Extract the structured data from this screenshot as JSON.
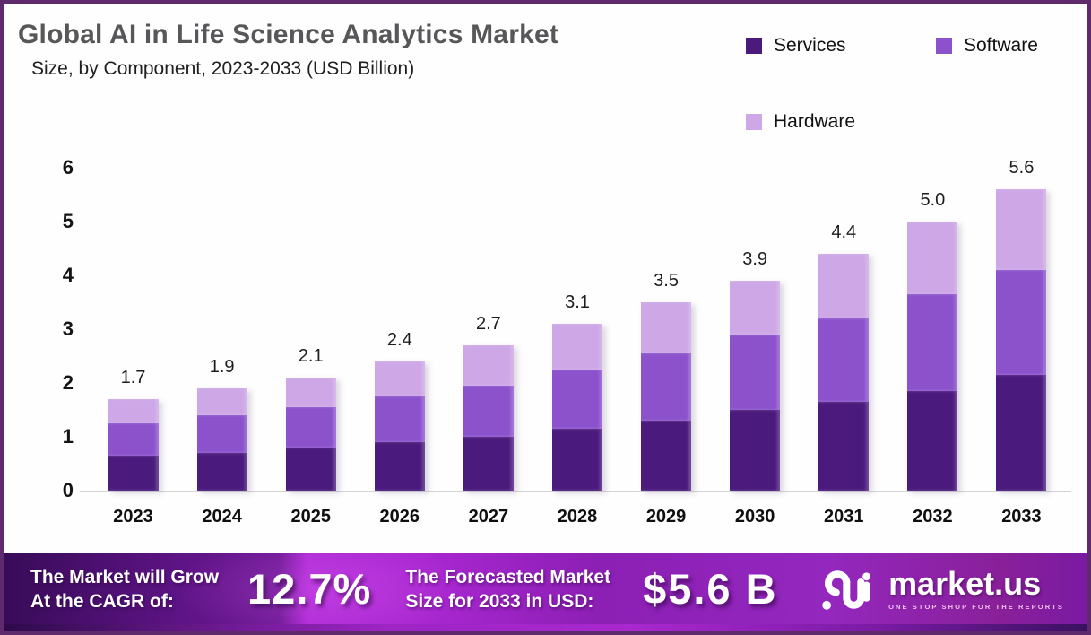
{
  "header": {
    "title": "Global AI in Life Science Analytics Market",
    "subtitle": "Size, by Component, 2023-2033 (USD Billion)"
  },
  "legend": {
    "items": [
      {
        "label": "Services",
        "color": "#4a1a7d"
      },
      {
        "label": "Software",
        "color": "#8c52cc"
      },
      {
        "label": "Hardware",
        "color": "#cda7e6"
      }
    ],
    "position": "top-right"
  },
  "chart_data": {
    "type": "bar",
    "stacked": true,
    "title": "Global AI in Life Science Analytics Market Size, by Component, 2023-2033 (USD Billion)",
    "xlabel": "",
    "ylabel": "",
    "ylim": [
      0,
      6
    ],
    "yticks": [
      0,
      1,
      2,
      3,
      4,
      5,
      6
    ],
    "grid": false,
    "legend_position": "top-right",
    "categories": [
      "2023",
      "2024",
      "2025",
      "2026",
      "2027",
      "2028",
      "2029",
      "2030",
      "2031",
      "2032",
      "2033"
    ],
    "series": [
      {
        "name": "Services",
        "color": "#4a1a7d",
        "values": [
          0.65,
          0.7,
          0.8,
          0.9,
          1.0,
          1.15,
          1.3,
          1.5,
          1.65,
          1.85,
          2.15
        ]
      },
      {
        "name": "Software",
        "color": "#8c52cc",
        "values": [
          0.6,
          0.7,
          0.75,
          0.85,
          0.95,
          1.1,
          1.25,
          1.4,
          1.55,
          1.8,
          1.95
        ]
      },
      {
        "name": "Hardware",
        "color": "#cda7e6",
        "values": [
          0.45,
          0.5,
          0.55,
          0.65,
          0.75,
          0.85,
          0.95,
          1.0,
          1.2,
          1.35,
          1.5
        ]
      }
    ],
    "totals": [
      "1.7",
      "1.9",
      "2.1",
      "2.4",
      "2.7",
      "3.1",
      "3.5",
      "3.9",
      "4.4",
      "5.0",
      "5.6"
    ]
  },
  "banner": {
    "cagr_label_line1": "The Market will Grow",
    "cagr_label_line2": "At the CAGR of:",
    "cagr_value": "12.7%",
    "forecast_label_line1": "The Forecasted Market",
    "forecast_label_line2": "Size for 2033 in USD:",
    "forecast_value": "$5.6 B",
    "brand": {
      "name": "market.us",
      "tagline": "ONE STOP SHOP FOR THE REPORTS"
    }
  }
}
